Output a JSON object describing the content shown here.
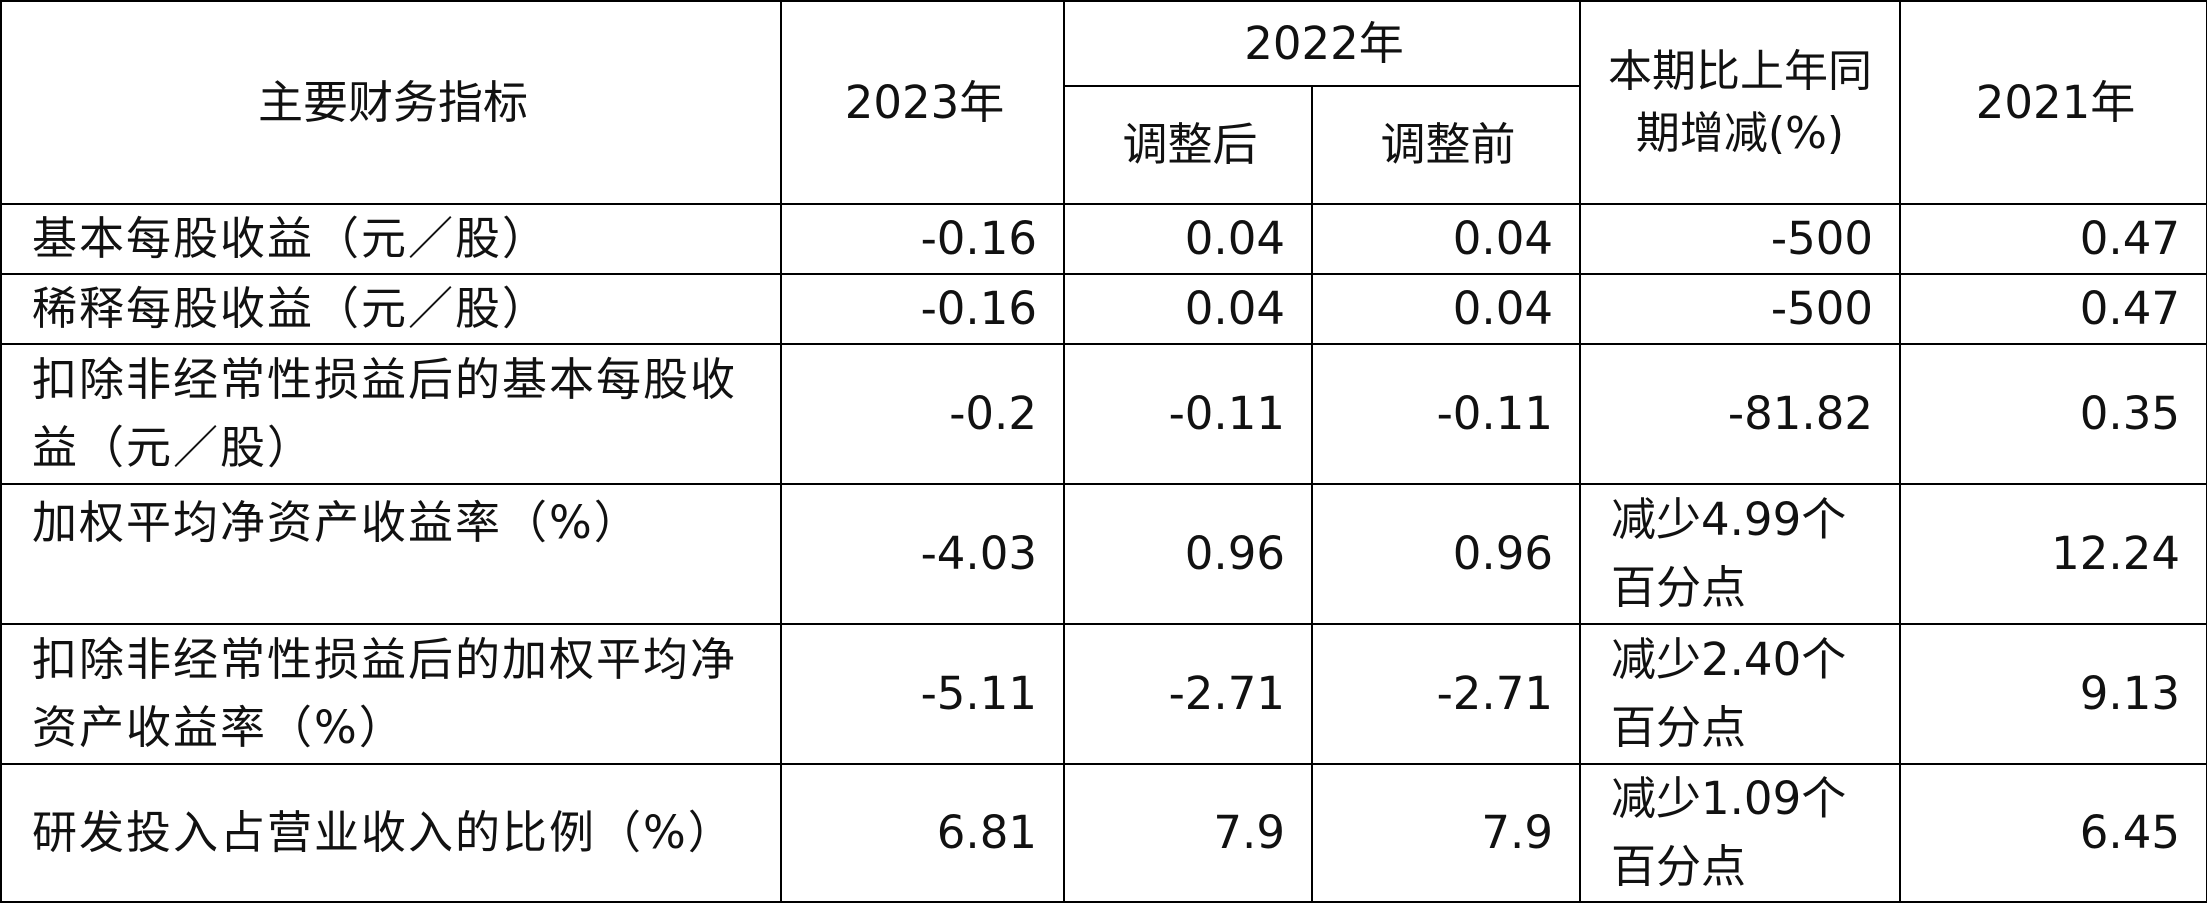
{
  "header": {
    "indicator": "主要财务指标",
    "y2023": "2023年",
    "y2022": "2022年",
    "adjusted_after": "调整后",
    "adjusted_before": "调整前",
    "yoy_change": "本期比上年同期增减(%)",
    "y2021": "2021年"
  },
  "rows": [
    {
      "label": "基本每股收益（元／股）",
      "v2023": "-0.16",
      "v2022_after": "0.04",
      "v2022_before": "0.04",
      "change": "-500",
      "v2021": "0.47"
    },
    {
      "label": "稀释每股收益（元／股）",
      "v2023": "-0.16",
      "v2022_after": "0.04",
      "v2022_before": "0.04",
      "change": "-500",
      "v2021": "0.47"
    },
    {
      "label": "扣除非经常性损益后的基本每股收益（元／股）",
      "v2023": "-0.2",
      "v2022_after": "-0.11",
      "v2022_before": "-0.11",
      "change": "-81.82",
      "v2021": "0.35"
    },
    {
      "label": "加权平均净资产收益率（%）",
      "v2023": "-4.03",
      "v2022_after": "0.96",
      "v2022_before": "0.96",
      "change": "减少4.99个百分点",
      "v2021": "12.24"
    },
    {
      "label": "扣除非经常性损益后的加权平均净资产收益率（%）",
      "v2023": "-5.11",
      "v2022_after": "-2.71",
      "v2022_before": "-2.71",
      "change": "减少2.40个百分点",
      "v2021": "9.13"
    },
    {
      "label": "研发投入占营业收入的比例（%）",
      "v2023": "6.81",
      "v2022_after": "7.9",
      "v2022_before": "7.9",
      "change": "减少1.09个百分点",
      "v2021": "6.45"
    }
  ]
}
